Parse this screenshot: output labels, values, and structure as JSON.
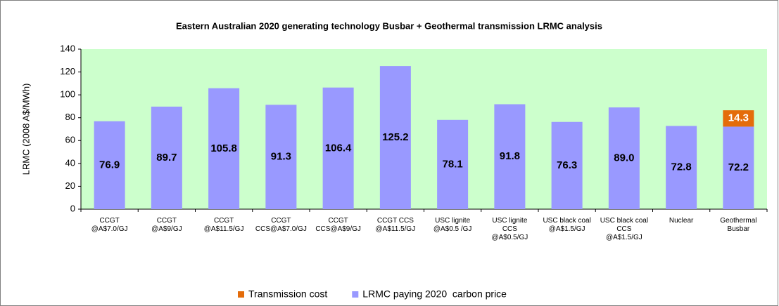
{
  "chart_data": {
    "type": "bar",
    "stacked": true,
    "title": "Eastern Australian 2020 generating technology Busbar + Geothermal transmission LRMC analysis",
    "y_label": "LRMC (2008 A$/MWh)",
    "categories": [
      "CCGT\n@A$7.0/GJ",
      "CCGT\n@A$9/GJ",
      "CCGT\n@A$11.5/GJ",
      "CCGT\nCCS@A$7.0/GJ",
      "CCGT\nCCS@A$9/GJ",
      "CCGT CCS\n@A$11.5/GJ",
      "USC lignite\n@A$0.5 /GJ",
      "USC lignite\nCCS\n@A$0.5/GJ",
      "USC black coal\n@A$1.5/GJ",
      "USC black coal\nCCS\n@A$1.5/GJ",
      "Nuclear",
      "Geothermal\nBusbar"
    ],
    "series": [
      {
        "name": "LRMC paying 2020  carbon price",
        "color": "#9999ff",
        "values": [
          76.9,
          89.7,
          105.8,
          91.3,
          106.4,
          125.2,
          78.1,
          91.8,
          76.3,
          89.0,
          72.8,
          72.2
        ],
        "value_labels": [
          "76.9",
          "89.7",
          "105.8",
          "91.3",
          "106.4",
          "125.2",
          "78.1",
          "91.8",
          "76.3",
          "89.0",
          "72.8",
          "72.2"
        ]
      },
      {
        "name": "Transmission cost",
        "color": "#e46c0a",
        "values": [
          null,
          null,
          null,
          null,
          null,
          null,
          null,
          null,
          null,
          null,
          null,
          14.3
        ]
      }
    ],
    "ylim": [
      0,
      140
    ],
    "yticks": [
      0,
      20,
      40,
      60,
      80,
      100,
      120,
      140
    ],
    "grid": false,
    "plot_background": "#ccffcc",
    "legend": "bottom"
  }
}
